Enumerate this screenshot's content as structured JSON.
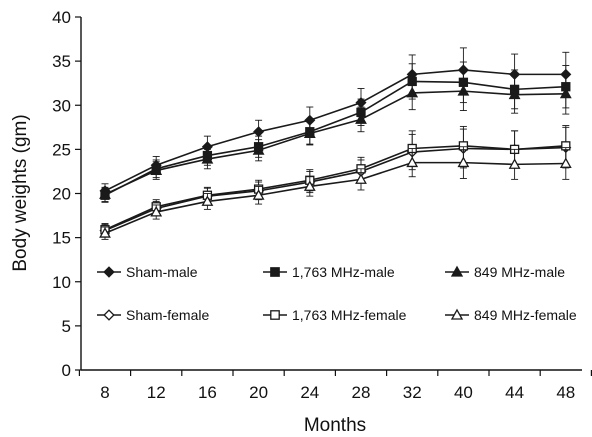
{
  "chart_data": {
    "type": "line",
    "xlabel": "Months",
    "ylabel": "Body weights (gm)",
    "categories": [
      "8",
      "12",
      "16",
      "20",
      "24",
      "28",
      "32",
      "40",
      "44",
      "48"
    ],
    "ylim": [
      0,
      40
    ],
    "yticks": [
      "0",
      "5",
      "10",
      "15",
      "20",
      "25",
      "30",
      "35",
      "40"
    ],
    "grid": false,
    "legend_position": "bottom, inside plot",
    "series": [
      {
        "name": "Sham-male",
        "marker": "diamond",
        "fill": "filled",
        "values": [
          20.3,
          23.2,
          25.3,
          27.0,
          28.3,
          30.3,
          33.5,
          34.0,
          33.5,
          33.5
        ],
        "errors": [
          0.8,
          1.0,
          1.2,
          1.3,
          1.5,
          1.6,
          2.2,
          2.5,
          2.3,
          2.5
        ]
      },
      {
        "name": "1,763 MHz-male",
        "marker": "square",
        "fill": "filled",
        "values": [
          19.8,
          22.8,
          24.3,
          25.3,
          27.0,
          29.2,
          32.7,
          32.6,
          31.8,
          32.1
        ],
        "errors": [
          0.8,
          1.0,
          1.1,
          1.2,
          1.4,
          1.5,
          2.0,
          2.3,
          2.2,
          2.4
        ]
      },
      {
        "name": "849 MHz-male",
        "marker": "triangle",
        "fill": "filled",
        "values": [
          19.9,
          22.6,
          23.9,
          24.9,
          26.8,
          28.4,
          31.4,
          31.6,
          31.2,
          31.3
        ],
        "errors": [
          0.8,
          1.0,
          1.1,
          1.2,
          1.3,
          1.4,
          1.9,
          2.2,
          2.1,
          2.3
        ]
      },
      {
        "name": "Sham-female",
        "marker": "diamond",
        "fill": "open",
        "values": [
          15.8,
          18.3,
          19.7,
          20.3,
          21.3,
          22.5,
          24.7,
          25.1,
          25.0,
          25.2
        ],
        "errors": [
          0.7,
          0.8,
          0.9,
          1.0,
          1.2,
          1.3,
          2.0,
          2.2,
          2.1,
          2.3
        ]
      },
      {
        "name": "1,763 MHz-female",
        "marker": "square",
        "fill": "open",
        "values": [
          15.9,
          18.5,
          19.8,
          20.5,
          21.5,
          22.8,
          25.1,
          25.4,
          25.0,
          25.4
        ],
        "errors": [
          0.7,
          0.8,
          0.9,
          1.0,
          1.2,
          1.3,
          2.0,
          2.2,
          2.1,
          2.3
        ]
      },
      {
        "name": "849 MHz-female",
        "marker": "triangle",
        "fill": "open",
        "values": [
          15.5,
          17.9,
          19.1,
          19.8,
          20.8,
          21.6,
          23.5,
          23.5,
          23.3,
          23.4
        ],
        "errors": [
          0.7,
          0.8,
          0.9,
          1.0,
          1.1,
          1.2,
          1.6,
          1.8,
          1.7,
          1.8
        ]
      }
    ],
    "colors": {
      "line": "#1a1a1a",
      "axis": "#111111",
      "marker_open_fill": "#ffffff"
    }
  }
}
